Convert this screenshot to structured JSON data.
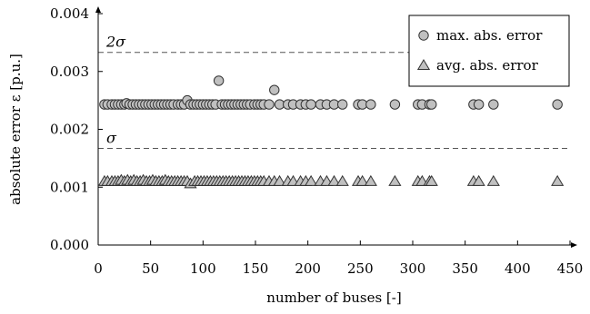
{
  "chart_data": {
    "type": "scatter",
    "xlabel": "number of buses [-]",
    "ylabel": "absolute error ε [p.u.]",
    "xlim": [
      0,
      450
    ],
    "ylim": [
      0,
      0.004
    ],
    "x_ticks": [
      0,
      50,
      100,
      150,
      200,
      250,
      300,
      350,
      400,
      450
    ],
    "x_tick_labels": [
      "0",
      "50",
      "100",
      "150",
      "200",
      "250",
      "300",
      "350",
      "400",
      "450"
    ],
    "y_ticks": [
      0,
      0.001,
      0.002,
      0.003,
      0.004
    ],
    "y_tick_labels": [
      "0.000",
      "0.001",
      "0.002",
      "0.003",
      "0.004"
    ],
    "grid": false,
    "legend_position": "top-right",
    "reference_lines": [
      {
        "label": "2σ",
        "value": 0.00333,
        "style": "dashed"
      },
      {
        "label": "σ",
        "value": 0.00167,
        "style": "dashed"
      }
    ],
    "series": [
      {
        "name": "max. abs. error",
        "marker": "circle",
        "color": "#c0c0c0",
        "x": [
          6,
          9,
          13,
          16,
          19,
          22,
          25,
          27,
          30,
          33,
          36,
          39,
          42,
          45,
          48,
          51,
          54,
          57,
          60,
          63,
          66,
          69,
          72,
          76,
          79,
          82,
          85,
          88,
          91,
          94,
          97,
          100,
          103,
          106,
          109,
          112,
          115,
          118,
          121,
          124,
          127,
          130,
          133,
          136,
          139,
          142,
          145,
          149,
          152,
          155,
          158,
          163,
          168,
          173,
          181,
          186,
          193,
          198,
          203,
          212,
          218,
          225,
          233,
          248,
          252,
          260,
          283,
          305,
          309,
          316,
          318,
          358,
          363,
          377,
          438
        ],
        "y": [
          0.00243,
          0.00243,
          0.00243,
          0.00243,
          0.00243,
          0.00243,
          0.00243,
          0.00245,
          0.00243,
          0.00243,
          0.00243,
          0.00243,
          0.00243,
          0.00243,
          0.00243,
          0.00243,
          0.00243,
          0.00243,
          0.00243,
          0.00243,
          0.00243,
          0.00243,
          0.00243,
          0.00243,
          0.00243,
          0.00243,
          0.0025,
          0.00243,
          0.00243,
          0.00243,
          0.00243,
          0.00243,
          0.00243,
          0.00243,
          0.00243,
          0.00243,
          0.00284,
          0.00243,
          0.00243,
          0.00243,
          0.00243,
          0.00243,
          0.00243,
          0.00243,
          0.00243,
          0.00243,
          0.00243,
          0.00243,
          0.00243,
          0.00243,
          0.00243,
          0.00243,
          0.00268,
          0.00243,
          0.00243,
          0.00243,
          0.00243,
          0.00243,
          0.00243,
          0.00243,
          0.00243,
          0.00243,
          0.00243,
          0.00243,
          0.00243,
          0.00243,
          0.00243,
          0.00243,
          0.00243,
          0.00243,
          0.00243,
          0.00243,
          0.00243,
          0.00243,
          0.00243
        ]
      },
      {
        "name": "avg. abs. error",
        "marker": "triangle",
        "color": "#c0c0c0",
        "x": [
          6,
          9,
          13,
          16,
          19,
          22,
          25,
          28,
          31,
          34,
          37,
          40,
          43,
          46,
          49,
          52,
          55,
          58,
          61,
          64,
          67,
          70,
          73,
          76,
          79,
          82,
          85,
          88,
          92,
          95,
          98,
          101,
          104,
          107,
          110,
          113,
          116,
          119,
          122,
          125,
          128,
          131,
          134,
          137,
          140,
          143,
          146,
          149,
          152,
          155,
          158,
          163,
          168,
          173,
          181,
          186,
          193,
          198,
          203,
          212,
          218,
          225,
          233,
          248,
          252,
          260,
          283,
          305,
          309,
          316,
          318,
          358,
          363,
          377,
          438
        ],
        "y": [
          0.0011,
          0.0011,
          0.0011,
          0.0011,
          0.0011,
          0.00112,
          0.0011,
          0.00112,
          0.0011,
          0.00112,
          0.0011,
          0.0011,
          0.00112,
          0.0011,
          0.0011,
          0.00112,
          0.0011,
          0.0011,
          0.0011,
          0.00112,
          0.0011,
          0.0011,
          0.0011,
          0.0011,
          0.0011,
          0.0011,
          0.0011,
          0.00106,
          0.0011,
          0.0011,
          0.0011,
          0.0011,
          0.0011,
          0.0011,
          0.0011,
          0.0011,
          0.0011,
          0.0011,
          0.0011,
          0.0011,
          0.0011,
          0.0011,
          0.0011,
          0.0011,
          0.0011,
          0.0011,
          0.0011,
          0.0011,
          0.0011,
          0.0011,
          0.0011,
          0.0011,
          0.0011,
          0.0011,
          0.0011,
          0.0011,
          0.0011,
          0.0011,
          0.0011,
          0.0011,
          0.0011,
          0.0011,
          0.0011,
          0.0011,
          0.0011,
          0.0011,
          0.0011,
          0.0011,
          0.0011,
          0.0011,
          0.0011,
          0.0011,
          0.0011,
          0.0011,
          0.0011
        ]
      }
    ]
  }
}
